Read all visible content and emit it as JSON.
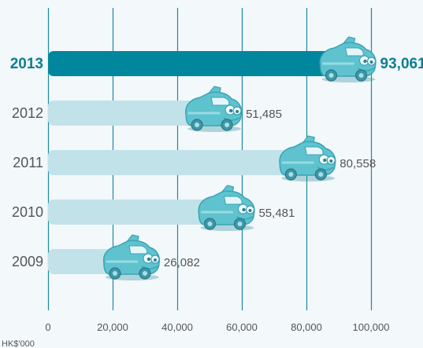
{
  "chart_data": {
    "type": "bar",
    "orientation": "horizontal",
    "categories": [
      "2013",
      "2012",
      "2011",
      "2010",
      "2009"
    ],
    "values": [
      93061,
      51485,
      80558,
      55481,
      26082
    ],
    "value_labels": [
      "93,061",
      "51,485",
      "80,558",
      "55,481",
      "26,082"
    ],
    "highlight_category": "2013",
    "xlim": [
      0,
      100000
    ],
    "x_ticks": [
      0,
      20000,
      40000,
      60000,
      80000,
      100000
    ],
    "x_tick_labels": [
      "0",
      "20,000",
      "40,000",
      "60,000",
      "80,000",
      "100,000"
    ],
    "xlabel": "HK$'000",
    "grid": true,
    "legend": "none",
    "bar_end_marker": "car-icon",
    "colors": {
      "highlight_bar": "#00869d",
      "bar": "#c2e2ea",
      "grid": "#1e8aa0",
      "highlight_text": "#0b7f92",
      "text": "#555555",
      "car_body": "#5fc3cf",
      "car_outline": "#3aa3b3"
    }
  }
}
